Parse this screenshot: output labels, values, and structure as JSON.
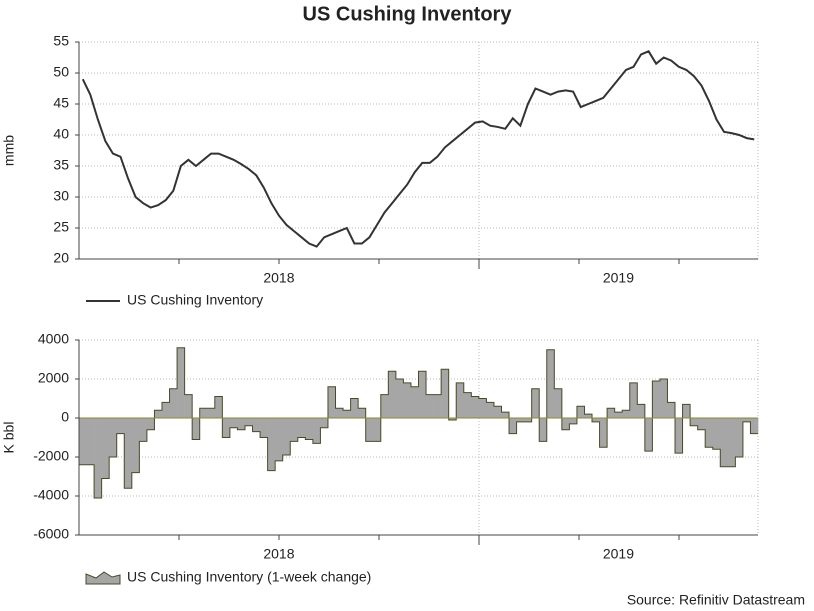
{
  "source": "Source: Refinitiv Datastream",
  "chart_data": [
    {
      "type": "line",
      "title": "US Cushing Inventory",
      "y_label": "mmb",
      "categories": [
        null,
        null,
        null,
        null,
        null,
        null,
        null,
        null,
        null,
        null,
        null,
        null,
        null,
        null,
        null,
        null,
        null,
        null,
        null,
        null,
        null,
        null,
        null,
        null,
        null,
        null,
        "2018",
        null,
        null,
        null,
        null,
        null,
        null,
        null,
        null,
        null,
        null,
        null,
        null,
        null,
        null,
        null,
        null,
        null,
        null,
        null,
        null,
        null,
        null,
        null,
        null,
        null,
        null,
        null,
        null,
        null,
        null,
        null,
        null,
        null,
        null,
        null,
        null,
        null,
        null,
        null,
        null,
        null,
        null,
        null,
        null,
        "2019",
        null,
        null,
        null,
        null,
        null,
        null,
        null,
        null,
        null,
        null,
        null,
        null,
        null,
        null,
        null,
        null,
        null,
        null
      ],
      "series": [
        {
          "name": "US Cushing Inventory",
          "color": "#333333",
          "values": [
            49,
            46.5,
            42.5,
            39,
            37,
            36.5,
            33,
            30,
            29,
            28.3,
            28.7,
            29.5,
            31,
            35,
            36,
            35,
            36,
            37,
            37,
            36.5,
            36,
            35.3,
            34.5,
            33.5,
            31.5,
            29,
            27,
            25.5,
            24.5,
            23.5,
            22.5,
            22,
            23.5,
            24,
            24.5,
            25,
            22.5,
            22.5,
            23.5,
            25.5,
            27.5,
            29,
            30.5,
            32,
            34,
            35.5,
            35.5,
            36.5,
            38,
            39,
            40,
            41,
            42,
            42.2,
            41.5,
            41.3,
            41,
            42.7,
            41.5,
            45,
            47.5,
            47,
            46.5,
            47,
            47.2,
            47,
            44.5,
            45,
            45.5,
            46,
            47.5,
            49,
            50.5,
            51,
            53,
            53.5,
            51.5,
            52.5,
            52,
            51,
            50.5,
            49.5,
            48,
            45.5,
            42.5,
            40.5,
            40.3,
            40,
            39.5,
            39.3
          ]
        }
      ],
      "ylim": [
        20,
        55
      ],
      "yticks": [
        20,
        25,
        30,
        35,
        40,
        45,
        50,
        55
      ],
      "grid": true
    },
    {
      "type": "area",
      "y_label": "K bbl",
      "categories": [
        null,
        null,
        null,
        null,
        null,
        null,
        null,
        null,
        null,
        null,
        null,
        null,
        null,
        null,
        null,
        null,
        null,
        null,
        null,
        null,
        null,
        null,
        null,
        null,
        null,
        null,
        "2018",
        null,
        null,
        null,
        null,
        null,
        null,
        null,
        null,
        null,
        null,
        null,
        null,
        null,
        null,
        null,
        null,
        null,
        null,
        null,
        null,
        null,
        null,
        null,
        null,
        null,
        null,
        null,
        null,
        null,
        null,
        null,
        null,
        null,
        null,
        null,
        null,
        null,
        null,
        null,
        null,
        null,
        null,
        null,
        null,
        "2019",
        null,
        null,
        null,
        null,
        null,
        null,
        null,
        null,
        null,
        null,
        null,
        null,
        null,
        null,
        null,
        null,
        null,
        null
      ],
      "series": [
        {
          "name": "US Cushing Inventory (1-week change)",
          "color": "#a6a6a6",
          "values": [
            -2400,
            -2400,
            -4100,
            -3100,
            -2000,
            -800,
            -3600,
            -2800,
            -1200,
            -600,
            400,
            800,
            1500,
            3600,
            1200,
            -1100,
            500,
            500,
            1100,
            -1000,
            -500,
            -600,
            -400,
            -700,
            -1000,
            -2700,
            -2200,
            -1900,
            -1200,
            -1000,
            -1100,
            -1300,
            -500,
            1600,
            500,
            400,
            1000,
            500,
            -1200,
            -1200,
            1200,
            2400,
            2000,
            1800,
            1600,
            2400,
            1200,
            1200,
            2500,
            -100,
            1800,
            1300,
            1100,
            1000,
            800,
            600,
            300,
            -800,
            -200,
            -200,
            1500,
            -1200,
            3500,
            1500,
            -600,
            -300,
            600,
            200,
            -200,
            -1500,
            500,
            300,
            400,
            1800,
            700,
            -1700,
            1900,
            2000,
            800,
            -1800,
            700,
            -400,
            -600,
            -1500,
            -1600,
            -2500,
            -2500,
            -2000,
            -200,
            -800
          ]
        }
      ],
      "ylim": [
        -6000,
        4000
      ],
      "yticks": [
        -6000,
        -4000,
        -2000,
        0,
        2000,
        4000
      ],
      "grid": true
    }
  ]
}
